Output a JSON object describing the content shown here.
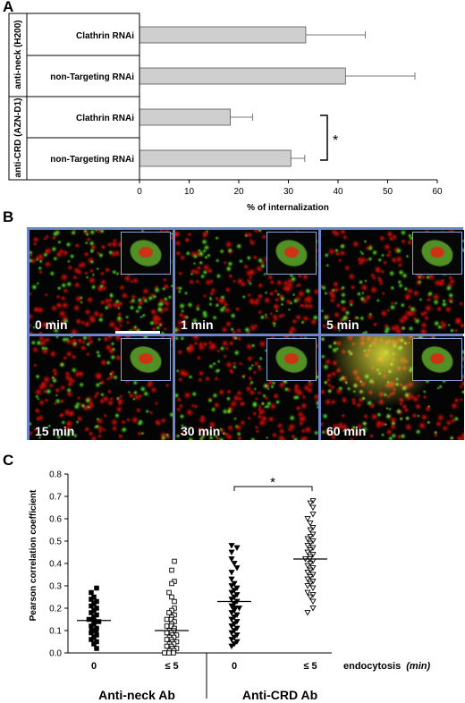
{
  "panel_letters": {
    "a": "A",
    "b": "B",
    "c": "C"
  },
  "chart_data": [
    {
      "type": "bar",
      "orientation": "horizontal",
      "groups": [
        "anti-neck (H200)",
        "anti-CRD (AZN-D1)"
      ],
      "categories": [
        "Clathrin RNAi",
        "non-Targeting RNAi",
        "Clathrin RNAi",
        "non-Targeting RNAi"
      ],
      "values": [
        33.5,
        41.5,
        18.3,
        30.5
      ],
      "errors": [
        12,
        14,
        4.5,
        2.8
      ],
      "xlabel": "% of internalization",
      "xlim": [
        0,
        60
      ],
      "xticks": [
        "0",
        "10",
        "20",
        "30",
        "40",
        "50",
        "60"
      ],
      "significance": "*",
      "bar_color": "#cfcfcf"
    },
    {
      "type": "scatter",
      "ylabel": "Pearson correlation coefficient",
      "ylim": [
        0,
        0.8
      ],
      "yticks": [
        "0.0",
        "0.1",
        "0.2",
        "0.3",
        "0.4",
        "0.5",
        "0.6",
        "0.7",
        "0.8"
      ],
      "xtick_labels": [
        "0",
        "≤ 5",
        "0",
        "≤ 5"
      ],
      "x_axis_title": "endocytosis",
      "x_axis_unit": "(min)",
      "group_labels": [
        "Anti-neck Ab",
        "Anti-CRD Ab"
      ],
      "significance": "*",
      "series": [
        {
          "marker": "filled-square",
          "mean": 0.145,
          "values": [
            0.29,
            0.27,
            0.25,
            0.24,
            0.23,
            0.22,
            0.21,
            0.2,
            0.19,
            0.18,
            0.17,
            0.16,
            0.15,
            0.15,
            0.14,
            0.14,
            0.13,
            0.12,
            0.11,
            0.1,
            0.1,
            0.09,
            0.08,
            0.07,
            0.06,
            0.05,
            0.04,
            0.02
          ]
        },
        {
          "marker": "open-square",
          "mean": 0.1,
          "values": [
            0.41,
            0.37,
            0.32,
            0.31,
            0.27,
            0.25,
            0.23,
            0.2,
            0.19,
            0.18,
            0.17,
            0.16,
            0.15,
            0.15,
            0.14,
            0.13,
            0.12,
            0.12,
            0.11,
            0.1,
            0.1,
            0.09,
            0.09,
            0.08,
            0.08,
            0.07,
            0.07,
            0.06,
            0.06,
            0.05,
            0.05,
            0.04,
            0.04,
            0.03,
            0.03,
            0.02,
            0.02,
            0.01,
            0.01,
            0.0,
            0.0,
            0.0
          ]
        },
        {
          "marker": "filled-triangle-down",
          "mean": 0.23,
          "values": [
            0.48,
            0.47,
            0.45,
            0.42,
            0.4,
            0.38,
            0.36,
            0.33,
            0.31,
            0.3,
            0.29,
            0.28,
            0.27,
            0.26,
            0.25,
            0.24,
            0.23,
            0.22,
            0.21,
            0.2,
            0.2,
            0.19,
            0.18,
            0.17,
            0.16,
            0.15,
            0.14,
            0.13,
            0.12,
            0.11,
            0.1,
            0.09,
            0.08,
            0.07,
            0.06,
            0.05,
            0.04,
            0.03
          ]
        },
        {
          "marker": "open-triangle-down",
          "mean": 0.42,
          "values": [
            0.68,
            0.67,
            0.65,
            0.62,
            0.6,
            0.58,
            0.56,
            0.55,
            0.53,
            0.52,
            0.51,
            0.5,
            0.49,
            0.48,
            0.47,
            0.46,
            0.45,
            0.44,
            0.43,
            0.42,
            0.42,
            0.41,
            0.4,
            0.39,
            0.38,
            0.37,
            0.36,
            0.35,
            0.34,
            0.33,
            0.32,
            0.31,
            0.3,
            0.29,
            0.27,
            0.26,
            0.25,
            0.23,
            0.2,
            0.18
          ]
        }
      ]
    }
  ],
  "panel_b": {
    "tiles": [
      {
        "label": "0 min",
        "yellow": 0.0
      },
      {
        "label": "1 min",
        "yellow": 0.0
      },
      {
        "label": "5 min",
        "yellow": 0.05
      },
      {
        "label": "15 min",
        "yellow": 0.05
      },
      {
        "label": "30 min",
        "yellow": 0.1
      },
      {
        "label": "60 min",
        "yellow": 0.55
      }
    ],
    "colors": {
      "green": "#7dff3a",
      "red": "#e8160f",
      "yellow": "#f0f040"
    }
  }
}
